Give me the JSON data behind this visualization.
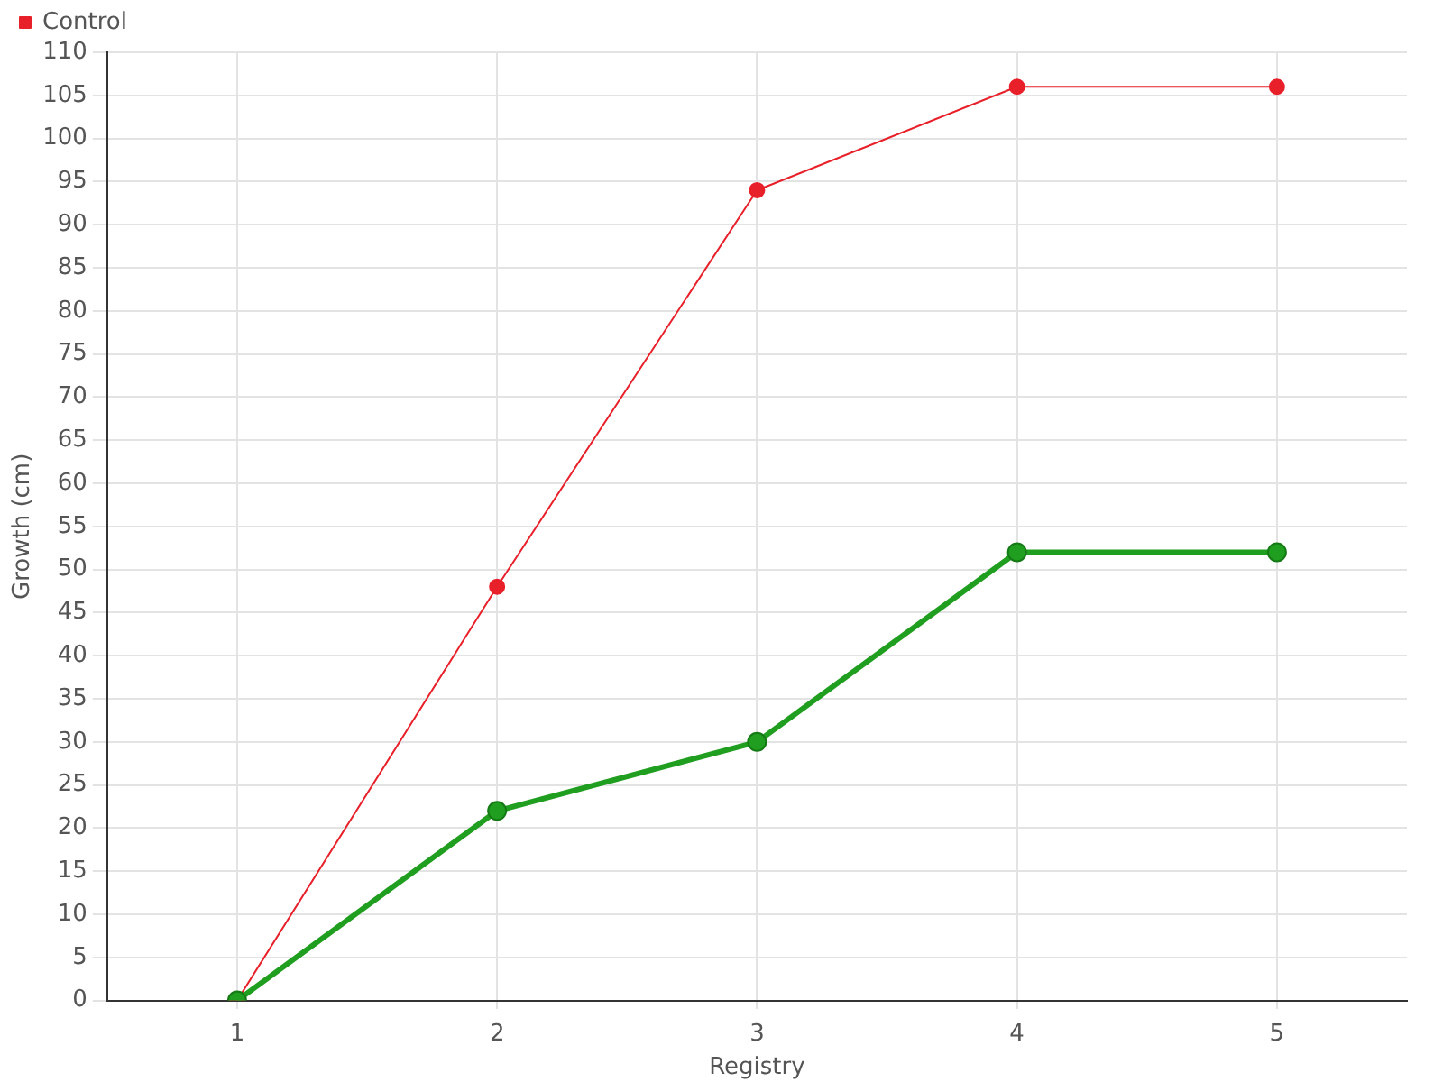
{
  "chart_data": {
    "type": "line",
    "xlabel": "Registry",
    "ylabel": "Growth (cm)",
    "categories": [
      "1",
      "2",
      "3",
      "4",
      "5"
    ],
    "series": [
      {
        "color": "#1f9e1f",
        "values": [
          0,
          22,
          30,
          52,
          52
        ]
      },
      {
        "name": "Control",
        "color": "#e8202a",
        "values": [
          0,
          48,
          94,
          106,
          106
        ]
      }
    ],
    "ylim": [
      0,
      110
    ],
    "yticks": [
      0,
      5,
      10,
      15,
      20,
      25,
      30,
      35,
      40,
      45,
      50,
      55,
      60,
      65,
      70,
      75,
      80,
      85,
      90,
      95,
      100,
      105,
      110
    ],
    "grid": true,
    "legend": "top left",
    "marker": "circle",
    "line_style": "solid"
  }
}
